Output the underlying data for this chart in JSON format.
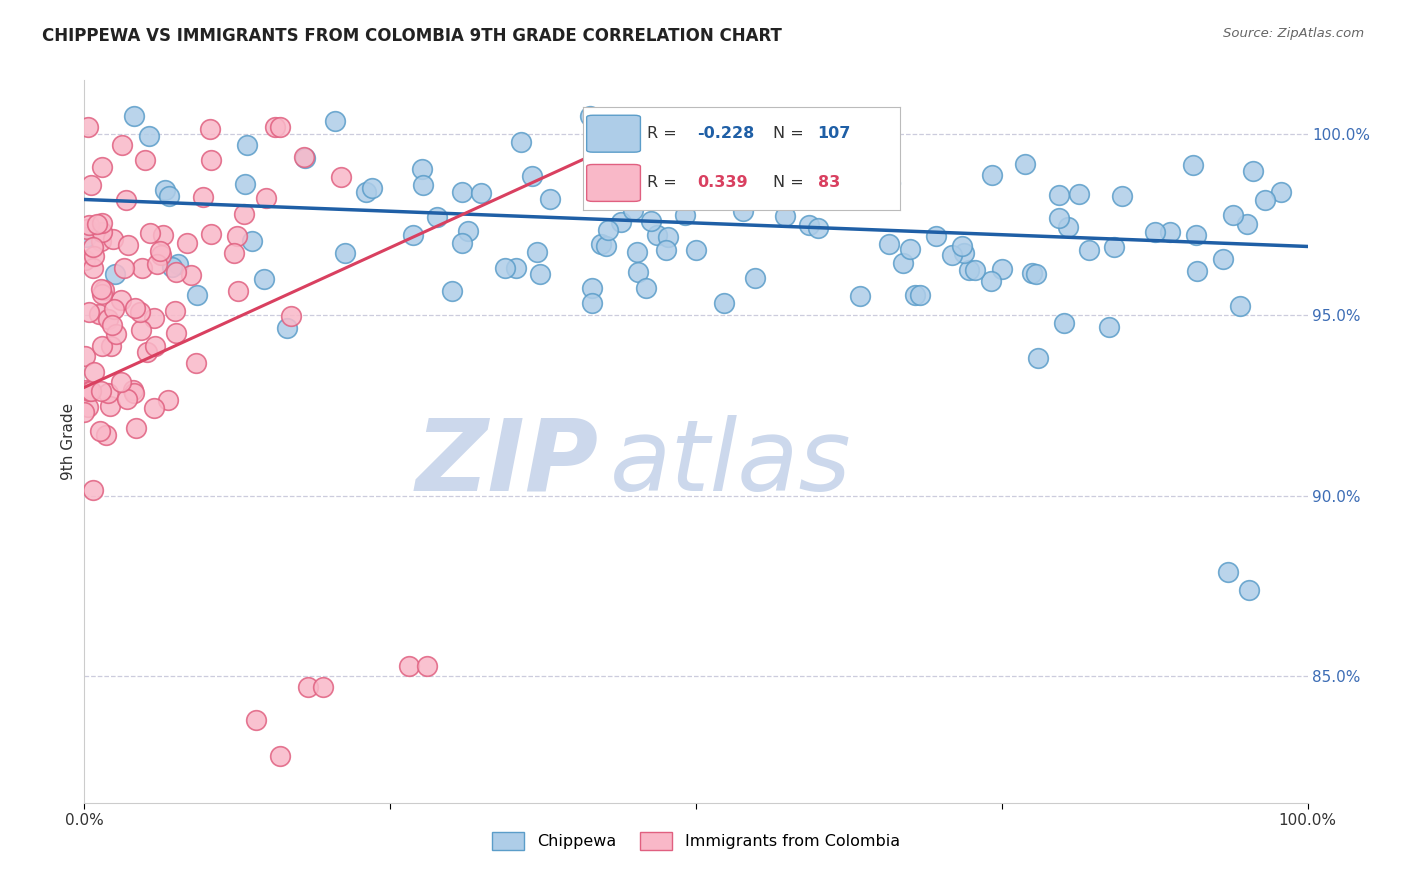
{
  "title": "CHIPPEWA VS IMMIGRANTS FROM COLOMBIA 9TH GRADE CORRELATION CHART",
  "source_text": "Source: ZipAtlas.com",
  "ylabel": "9th Grade",
  "xlim": [
    0.0,
    1.0
  ],
  "ylim": [
    0.815,
    1.015
  ],
  "y_ticks_right": [
    0.85,
    0.9,
    0.95,
    1.0
  ],
  "y_tick_labels_right": [
    "85.0%",
    "90.0%",
    "95.0%",
    "100.0%"
  ],
  "chippewa_color": "#aecde8",
  "chippewa_edge": "#5b9dc9",
  "colombia_color": "#f9b8c8",
  "colombia_edge": "#e06080",
  "chippewa_R": -0.228,
  "chippewa_N": 107,
  "colombia_R": 0.339,
  "colombia_N": 83,
  "trend_blue": "#1f5fa6",
  "trend_red": "#d94060",
  "watermark_zip": "ZIP",
  "watermark_atlas": "atlas",
  "watermark_color": "#ccd8ec",
  "background_color": "#ffffff",
  "grid_color": "#ccccdd",
  "title_fontsize": 12,
  "legend_R_blue": "-0.228",
  "legend_N_blue": "107",
  "legend_R_red": "0.339",
  "legend_N_red": "83",
  "chippewa_label": "Chippewa",
  "colombia_label": "Immigrants from Colombia"
}
